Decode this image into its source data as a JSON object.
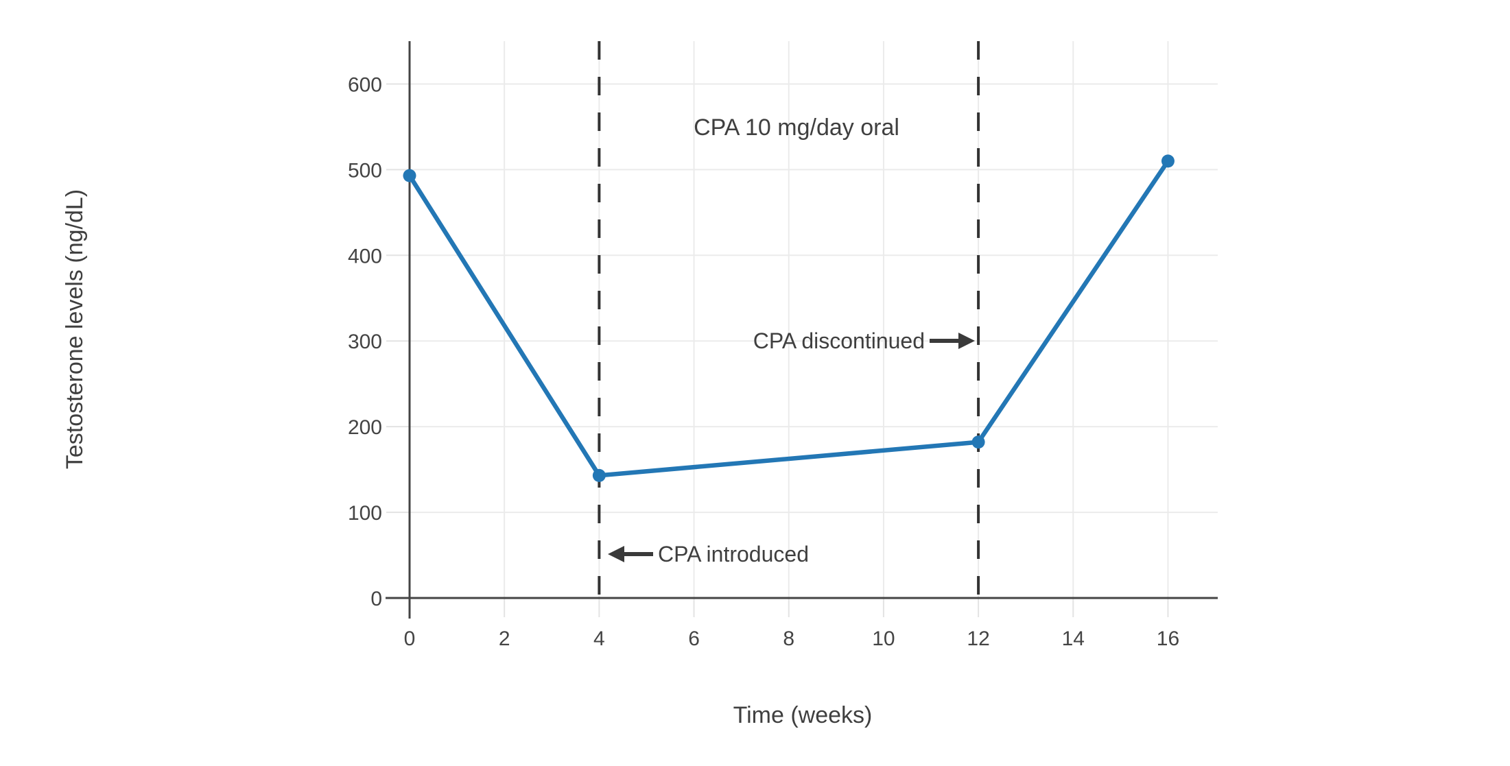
{
  "page": {
    "background_color": "#ffffff"
  },
  "chart_data": {
    "type": "line",
    "title": "CPA 10 mg/day oral",
    "xlabel": "Time (weeks)",
    "ylabel": "Testosterone levels (ng/dL)",
    "x": [
      0,
      4,
      12,
      16
    ],
    "y": [
      493,
      143,
      182,
      510
    ],
    "series_name": "Testosterone levels",
    "x_ticks": [
      0,
      2,
      4,
      6,
      8,
      10,
      12,
      14,
      16
    ],
    "y_ticks": [
      0,
      100,
      200,
      300,
      400,
      500,
      600
    ],
    "xlim": [
      0,
      17.05
    ],
    "ylim": [
      0,
      650
    ],
    "grid": true,
    "legend_position": "none",
    "vlines": [
      4,
      12
    ],
    "line_color": "#2377b5",
    "marker_color": "#2377b5",
    "marker": "circle",
    "axis_color": "#444444",
    "grid_color": "#ebebeb",
    "tick_stub_color": "#e3e3e3",
    "text_color": "#424242",
    "dashed_line_color": "#333333",
    "arrow_color": "#3a3a3a",
    "annotations": [
      {
        "id": "dose-label",
        "text": "CPA 10 mg/day oral",
        "arrow": "none",
        "x": 8,
        "y": 550
      },
      {
        "id": "discontinued-label",
        "text": "CPA discontinued",
        "arrow": "right",
        "x": 12,
        "y": 300
      },
      {
        "id": "introduced-label",
        "text": "CPA introduced",
        "arrow": "left",
        "x": 4,
        "y": 50
      }
    ]
  }
}
